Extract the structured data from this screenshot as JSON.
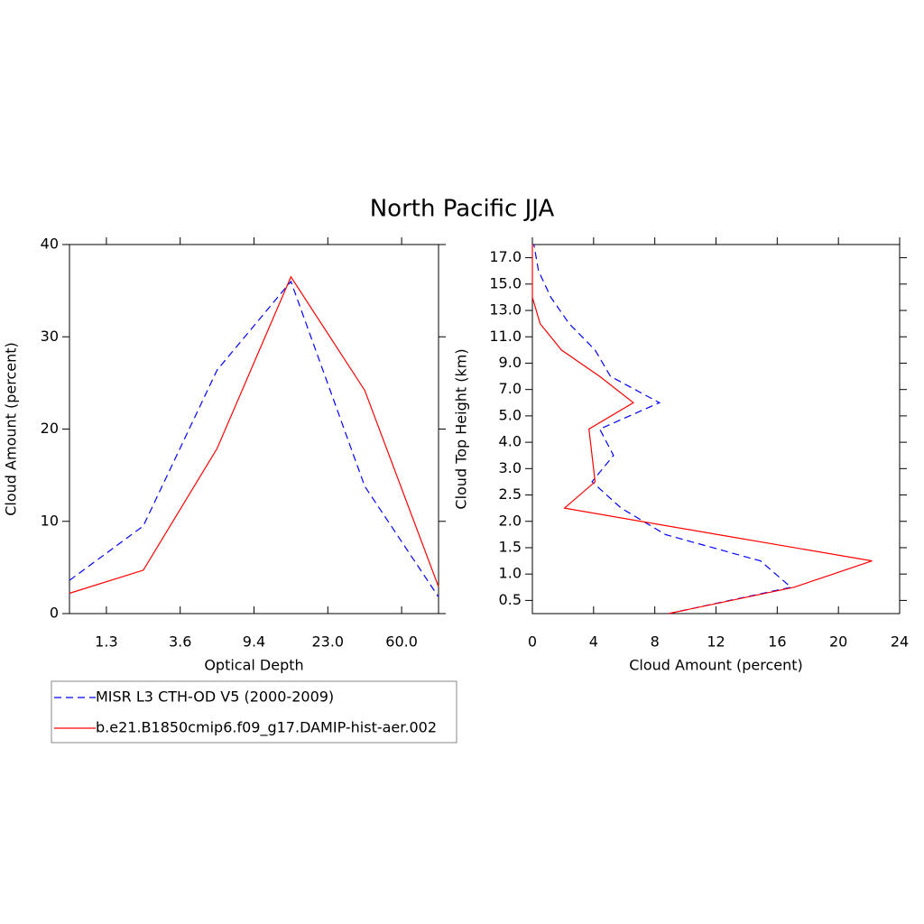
{
  "title": "North Pacific JJA",
  "chart_data": [
    {
      "type": "line",
      "xlabel": "Optical Depth",
      "ylabel": "Cloud Amount (percent)",
      "x": [
        0,
        1,
        2,
        3,
        4,
        5
      ],
      "xlim": [
        0,
        5
      ],
      "xticks": [
        {
          "value": 0.5,
          "label": "1.3"
        },
        {
          "value": 1.5,
          "label": "3.6"
        },
        {
          "value": 2.5,
          "label": "9.4"
        },
        {
          "value": 3.5,
          "label": "23.0"
        },
        {
          "value": 4.5,
          "label": "60.0"
        }
      ],
      "ylim": [
        0,
        40
      ],
      "yticks": [
        0,
        10,
        20,
        30,
        40
      ],
      "series": [
        {
          "name": "MISR L3 CTH-OD V5 (2000-2009)",
          "color": "#0000ff",
          "dash": "dashed",
          "values": [
            3.6,
            9.5,
            26.4,
            36.0,
            13.8,
            1.8
          ]
        },
        {
          "name": "b.e21.B1850cmip6.f09_g17.DAMIP-hist-aer.002",
          "color": "#ff0000",
          "dash": "solid",
          "values": [
            2.2,
            4.7,
            17.9,
            36.5,
            24.2,
            2.9
          ]
        }
      ]
    },
    {
      "type": "profile",
      "xlabel": "Cloud Amount (percent)",
      "ylabel": "Cloud Top Height (km)",
      "xlim": [
        0,
        24
      ],
      "xticks": [
        0,
        4,
        8,
        12,
        16,
        20,
        24
      ],
      "y": [
        0,
        1,
        2,
        3,
        4,
        5,
        6,
        7,
        8,
        9,
        10,
        11,
        12,
        13,
        14
      ],
      "ylim": [
        0,
        14
      ],
      "yticks": [
        {
          "value": 0.5,
          "label": "0.5"
        },
        {
          "value": 1.5,
          "label": "1.0"
        },
        {
          "value": 2.5,
          "label": "1.5"
        },
        {
          "value": 3.5,
          "label": "2.0"
        },
        {
          "value": 4.5,
          "label": "2.5"
        },
        {
          "value": 5.5,
          "label": "3.0"
        },
        {
          "value": 6.5,
          "label": "4.0"
        },
        {
          "value": 7.5,
          "label": "5.0"
        },
        {
          "value": 8.5,
          "label": "7.0"
        },
        {
          "value": 9.5,
          "label": "9.0"
        },
        {
          "value": 10.5,
          "label": "11.0"
        },
        {
          "value": 11.5,
          "label": "13.0"
        },
        {
          "value": 12.5,
          "label": "15.0"
        },
        {
          "value": 13.5,
          "label": "17.0"
        }
      ],
      "series": [
        {
          "color": "#0000ff",
          "dash": "dashed",
          "values": [
            8.9,
            16.9,
            14.9,
            8.7,
            5.8,
            3.9,
            5.3,
            4.4,
            8.3,
            5.1,
            4.1,
            2.4,
            1.2,
            0.4,
            0.1
          ]
        },
        {
          "color": "#ff0000",
          "dash": "solid",
          "values": [
            8.9,
            17.1,
            22.2,
            12.1,
            2.1,
            4.1,
            3.9,
            3.7,
            6.6,
            4.4,
            1.9,
            0.5,
            0.0,
            0.0,
            0.0
          ]
        }
      ]
    }
  ]
}
